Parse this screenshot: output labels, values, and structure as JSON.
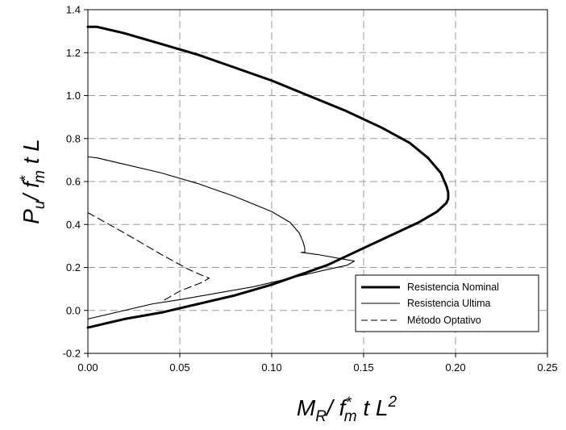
{
  "chart_data": {
    "type": "line",
    "xlim": [
      0,
      0.25
    ],
    "ylim": [
      -0.2,
      1.4
    ],
    "x_ticks": [
      "0.00",
      "0.05",
      "0.10",
      "0.15",
      "0.20",
      "0.25"
    ],
    "y_ticks": [
      "-0.2",
      "0.0",
      "0.2",
      "0.4",
      "0.6",
      "0.8",
      "1.0",
      "1.2",
      "1.4"
    ],
    "grid": true,
    "legend_position": "bottom-right",
    "xlabel": {
      "main": "M",
      "sub": "R",
      "mid": "/ f",
      "sup": "*",
      "sub2": "m",
      "tail": " t L",
      "sup2": "2"
    },
    "ylabel": {
      "main": "P",
      "sub": "u",
      "mid": "/ f",
      "sup": "*",
      "sub2": "m",
      "tail": " t L"
    },
    "series": [
      {
        "name": "Resistencia Nominal",
        "style": "bold",
        "color": "#000000",
        "x": [
          0.0,
          0.005,
          0.02,
          0.04,
          0.06,
          0.08,
          0.1,
          0.12,
          0.14,
          0.16,
          0.175,
          0.185,
          0.192,
          0.195,
          0.196,
          0.196,
          0.195,
          0.19,
          0.18,
          0.17,
          0.16,
          0.15,
          0.14,
          0.13,
          0.12,
          0.11,
          0.1,
          0.08,
          0.06,
          0.04,
          0.02,
          0.0
        ],
        "y": [
          1.32,
          1.32,
          1.29,
          1.24,
          1.19,
          1.13,
          1.07,
          1.0,
          0.93,
          0.85,
          0.78,
          0.71,
          0.64,
          0.58,
          0.55,
          0.52,
          0.5,
          0.46,
          0.41,
          0.37,
          0.33,
          0.29,
          0.25,
          0.21,
          0.18,
          0.15,
          0.12,
          0.07,
          0.03,
          -0.01,
          -0.04,
          -0.08
        ]
      },
      {
        "name": "Resistencia Ultima",
        "style": "thin",
        "color": "#000000",
        "x": [
          0.0,
          0.005,
          0.02,
          0.04,
          0.06,
          0.08,
          0.1,
          0.11,
          0.115,
          0.117,
          0.118,
          0.118,
          0.116,
          0.125,
          0.138,
          0.145,
          0.141,
          0.13,
          0.11,
          0.09,
          0.07,
          0.05,
          0.035,
          0.02,
          0.0
        ],
        "y": [
          0.715,
          0.71,
          0.68,
          0.64,
          0.59,
          0.53,
          0.46,
          0.41,
          0.36,
          0.32,
          0.29,
          0.27,
          0.27,
          0.26,
          0.24,
          0.23,
          0.21,
          0.19,
          0.15,
          0.11,
          0.08,
          0.05,
          0.03,
          0.0,
          -0.04
        ]
      },
      {
        "name": "Método Optativo",
        "style": "dashed",
        "color": "#000000",
        "x": [
          0.0,
          0.02,
          0.04,
          0.055,
          0.063,
          0.066,
          0.062,
          0.05,
          0.04
        ],
        "y": [
          0.455,
          0.36,
          0.26,
          0.19,
          0.16,
          0.15,
          0.13,
          0.09,
          0.04
        ]
      }
    ]
  }
}
